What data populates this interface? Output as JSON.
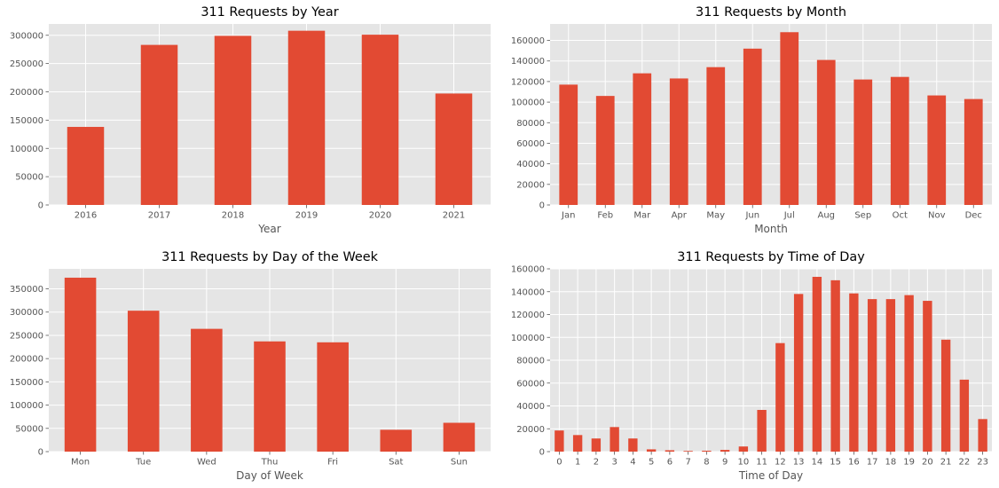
{
  "chart_data": [
    {
      "type": "bar",
      "title": "311 Requests by Year",
      "xlabel": "Year",
      "ylabel": "",
      "categories": [
        "2016",
        "2017",
        "2018",
        "2019",
        "2020",
        "2021"
      ],
      "values": [
        138000,
        283000,
        299000,
        308000,
        301000,
        197000
      ],
      "ylim": [
        0,
        320000
      ],
      "yticks": [
        0,
        50000,
        100000,
        150000,
        200000,
        250000,
        300000
      ],
      "grid": true,
      "color": "#e24a33"
    },
    {
      "type": "bar",
      "title": "311 Requests by Month",
      "xlabel": "Month",
      "ylabel": "",
      "categories": [
        "Jan",
        "Feb",
        "Mar",
        "Apr",
        "May",
        "Jun",
        "Jul",
        "Aug",
        "Sep",
        "Oct",
        "Nov",
        "Dec"
      ],
      "values": [
        117000,
        106000,
        128000,
        123000,
        134000,
        152000,
        168000,
        141000,
        122000,
        124500,
        106500,
        103000
      ],
      "ylim": [
        0,
        176000
      ],
      "yticks": [
        0,
        20000,
        40000,
        60000,
        80000,
        100000,
        120000,
        140000,
        160000
      ],
      "grid": true,
      "color": "#e24a33"
    },
    {
      "type": "bar",
      "title": "311 Requests by Day of the Week",
      "xlabel": "Day of Week",
      "ylabel": "",
      "categories": [
        "Mon",
        "Tue",
        "Wed",
        "Thu",
        "Fri",
        "Sat",
        "Sun"
      ],
      "values": [
        374000,
        303000,
        264000,
        237000,
        235000,
        47000,
        62000
      ],
      "ylim": [
        0,
        393000
      ],
      "yticks": [
        0,
        50000,
        100000,
        150000,
        200000,
        250000,
        300000,
        350000
      ],
      "grid": true,
      "color": "#e24a33"
    },
    {
      "type": "bar",
      "title": "311 Requests by Time of Day",
      "xlabel": "Time of Day",
      "ylabel": "",
      "categories": [
        "0",
        "1",
        "2",
        "3",
        "4",
        "5",
        "6",
        "7",
        "8",
        "9",
        "10",
        "11",
        "12",
        "13",
        "14",
        "15",
        "16",
        "17",
        "18",
        "19",
        "20",
        "21",
        "22",
        "23"
      ],
      "values": [
        18500,
        14500,
        11500,
        21500,
        11500,
        2000,
        1200,
        600,
        800,
        1500,
        4500,
        36500,
        95000,
        138000,
        153000,
        150000,
        138500,
        133500,
        133500,
        137000,
        132000,
        98000,
        63000,
        28500
      ],
      "ylim": [
        0,
        160000
      ],
      "yticks": [
        0,
        20000,
        40000,
        60000,
        80000,
        100000,
        120000,
        140000,
        160000
      ],
      "grid": true,
      "color": "#e24a33"
    }
  ]
}
